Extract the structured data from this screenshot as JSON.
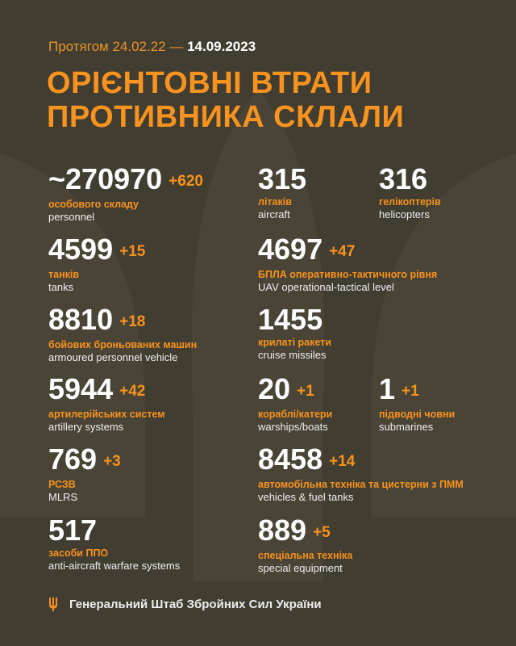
{
  "header": {
    "period_prefix": "Протягом 24.02.22 —",
    "period_end": "14.09.2023",
    "title_line1": "ОРІЄНТОВНІ ВТРАТИ",
    "title_line2": "ПРОТИВНИКА СКЛАЛИ"
  },
  "stats": [
    {
      "value": "~270970",
      "delta": "+620",
      "ua": "особового складу",
      "en": "personnel"
    },
    {
      "value": "315",
      "delta": "",
      "ua": "літаків",
      "en": "aircraft"
    },
    {
      "value": "316",
      "delta": "",
      "ua": "гелікоптерів",
      "en": "helicopters"
    },
    {
      "value": "4599",
      "delta": "+15",
      "ua": "танків",
      "en": "tanks"
    },
    {
      "value": "4697",
      "delta": "+47",
      "ua": "БПЛА оперативно-тактичного рівня",
      "en": "UAV operational-tactical level"
    },
    {
      "value": "8810",
      "delta": "+18",
      "ua": "бойових броньованих машин",
      "en": "armoured personnel vehicle"
    },
    {
      "value": "1455",
      "delta": "",
      "ua": "крилаті ракети",
      "en": "cruise missiles"
    },
    {
      "value": "5944",
      "delta": "+42",
      "ua": "артилерійських систем",
      "en": "artillery systems"
    },
    {
      "value": "20",
      "delta": "+1",
      "ua": "кораблі/катери",
      "en": "warships/boats"
    },
    {
      "value": "1",
      "delta": "+1",
      "ua": "підводні човни",
      "en": "submarines"
    },
    {
      "value": "769",
      "delta": "+3",
      "ua": "РСЗВ",
      "en": "MLRS"
    },
    {
      "value": "8458",
      "delta": "+14",
      "ua": "автомобільна техніка та цистерни з ПММ",
      "en": "vehicles & fuel tanks"
    },
    {
      "value": "517",
      "delta": "",
      "ua": "засоби ППО",
      "en": "anti-aircraft warfare systems"
    },
    {
      "value": "889",
      "delta": "+5",
      "ua": "спеціальна техніка",
      "en": "special equipment"
    }
  ],
  "footer": {
    "text": "Генеральний Штаб Збройних Сил України",
    "icon": "trident-icon"
  },
  "colors": {
    "background": "#423d31",
    "accent": "#f7931e"
  }
}
